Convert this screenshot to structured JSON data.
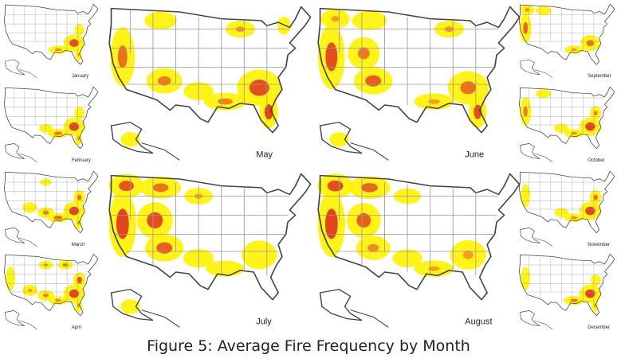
{
  "caption": "Figure 5: Average Fire Frequency by Month",
  "months": [
    {
      "id": "january",
      "label": "January",
      "hotspots": [
        {
          "region": "southeast",
          "intensity": 0.95
        },
        {
          "region": "gulf-coast",
          "intensity": 0.6
        },
        {
          "region": "mid-atlantic",
          "intensity": 0.3
        },
        {
          "region": "florida",
          "intensity": 0.5
        }
      ]
    },
    {
      "id": "february",
      "label": "February",
      "hotspots": [
        {
          "region": "southeast",
          "intensity": 1.0
        },
        {
          "region": "gulf-coast",
          "intensity": 0.75
        },
        {
          "region": "mid-atlantic",
          "intensity": 0.45
        },
        {
          "region": "florida",
          "intensity": 0.6
        },
        {
          "region": "southern-plains",
          "intensity": 0.3
        }
      ]
    },
    {
      "id": "march",
      "label": "March",
      "hotspots": [
        {
          "region": "southeast",
          "intensity": 1.0
        },
        {
          "region": "gulf-coast",
          "intensity": 0.8
        },
        {
          "region": "mid-atlantic",
          "intensity": 0.75
        },
        {
          "region": "southern-plains",
          "intensity": 0.7
        },
        {
          "region": "southwest",
          "intensity": 0.4
        },
        {
          "region": "northern-plains",
          "intensity": 0.25
        },
        {
          "region": "florida",
          "intensity": 0.6
        }
      ]
    },
    {
      "id": "april",
      "label": "April",
      "hotspots": [
        {
          "region": "southeast",
          "intensity": 1.0
        },
        {
          "region": "mid-atlantic",
          "intensity": 0.9
        },
        {
          "region": "southern-plains",
          "intensity": 0.65
        },
        {
          "region": "northern-plains",
          "intensity": 0.6
        },
        {
          "region": "great-lakes",
          "intensity": 0.7
        },
        {
          "region": "southwest",
          "intensity": 0.5
        },
        {
          "region": "california",
          "intensity": 0.35
        },
        {
          "region": "gulf-coast",
          "intensity": 0.6
        },
        {
          "region": "florida",
          "intensity": 0.6
        }
      ]
    },
    {
      "id": "may",
      "label": "May",
      "hotspots": [
        {
          "region": "southeast",
          "intensity": 0.95
        },
        {
          "region": "florida",
          "intensity": 1.0
        },
        {
          "region": "gulf-coast",
          "intensity": 0.65
        },
        {
          "region": "california",
          "intensity": 0.75
        },
        {
          "region": "southwest",
          "intensity": 0.7
        },
        {
          "region": "great-lakes",
          "intensity": 0.55
        },
        {
          "region": "northeast",
          "intensity": 0.35
        },
        {
          "region": "northern-rockies",
          "intensity": 0.3
        },
        {
          "region": "southern-plains",
          "intensity": 0.35
        },
        {
          "region": "alaska",
          "intensity": 0.3
        }
      ]
    },
    {
      "id": "june",
      "label": "June",
      "hotspots": [
        {
          "region": "california",
          "intensity": 0.95
        },
        {
          "region": "southwest",
          "intensity": 0.85
        },
        {
          "region": "great-basin",
          "intensity": 0.7
        },
        {
          "region": "southeast",
          "intensity": 0.75
        },
        {
          "region": "florida",
          "intensity": 0.95
        },
        {
          "region": "gulf-coast",
          "intensity": 0.5
        },
        {
          "region": "great-lakes",
          "intensity": 0.55
        },
        {
          "region": "northern-rockies",
          "intensity": 0.45
        },
        {
          "region": "pacific-northwest",
          "intensity": 0.5
        },
        {
          "region": "alaska",
          "intensity": 0.3
        }
      ]
    },
    {
      "id": "july",
      "label": "July",
      "hotspots": [
        {
          "region": "california",
          "intensity": 1.0
        },
        {
          "region": "great-basin",
          "intensity": 0.95
        },
        {
          "region": "southwest",
          "intensity": 0.85
        },
        {
          "region": "pacific-northwest",
          "intensity": 0.9
        },
        {
          "region": "northern-rockies",
          "intensity": 0.75
        },
        {
          "region": "northern-plains",
          "intensity": 0.5
        },
        {
          "region": "southeast",
          "intensity": 0.45
        },
        {
          "region": "gulf-coast",
          "intensity": 0.45
        },
        {
          "region": "southern-plains",
          "intensity": 0.4
        },
        {
          "region": "alaska",
          "intensity": 0.3
        }
      ]
    },
    {
      "id": "august",
      "label": "August",
      "hotspots": [
        {
          "region": "california",
          "intensity": 1.0
        },
        {
          "region": "pacific-northwest",
          "intensity": 0.95
        },
        {
          "region": "great-basin",
          "intensity": 0.85
        },
        {
          "region": "northern-rockies",
          "intensity": 0.8
        },
        {
          "region": "southwest",
          "intensity": 0.6
        },
        {
          "region": "southeast",
          "intensity": 0.5
        },
        {
          "region": "gulf-coast",
          "intensity": 0.5
        },
        {
          "region": "northern-plains",
          "intensity": 0.4
        },
        {
          "region": "southern-plains",
          "intensity": 0.35
        }
      ]
    },
    {
      "id": "september",
      "label": "September",
      "hotspots": [
        {
          "region": "california",
          "intensity": 0.8
        },
        {
          "region": "pacific-northwest",
          "intensity": 0.6
        },
        {
          "region": "southeast",
          "intensity": 0.75
        },
        {
          "region": "gulf-coast",
          "intensity": 0.55
        },
        {
          "region": "northern-rockies",
          "intensity": 0.35
        }
      ]
    },
    {
      "id": "october",
      "label": "October",
      "hotspots": [
        {
          "region": "southeast",
          "intensity": 1.0
        },
        {
          "region": "mid-atlantic",
          "intensity": 0.65
        },
        {
          "region": "gulf-coast",
          "intensity": 0.6
        },
        {
          "region": "california",
          "intensity": 0.7
        },
        {
          "region": "southern-plains",
          "intensity": 0.4
        },
        {
          "region": "northern-rockies",
          "intensity": 0.3
        }
      ]
    },
    {
      "id": "november",
      "label": "November",
      "hotspots": [
        {
          "region": "southeast",
          "intensity": 1.0
        },
        {
          "region": "mid-atlantic",
          "intensity": 0.75
        },
        {
          "region": "gulf-coast",
          "intensity": 0.6
        },
        {
          "region": "southern-plains",
          "intensity": 0.4
        },
        {
          "region": "california",
          "intensity": 0.3
        }
      ]
    },
    {
      "id": "december",
      "label": "December",
      "hotspots": [
        {
          "region": "southeast",
          "intensity": 1.0
        },
        {
          "region": "gulf-coast",
          "intensity": 0.7
        },
        {
          "region": "mid-atlantic",
          "intensity": 0.4
        },
        {
          "region": "florida",
          "intensity": 0.5
        },
        {
          "region": "california",
          "intensity": 0.3
        }
      ]
    }
  ],
  "colors": {
    "low": "#fff200",
    "medium": "#f59a1b",
    "high": "#e03a1e",
    "outline": "#444444",
    "background": "#ffffff"
  }
}
